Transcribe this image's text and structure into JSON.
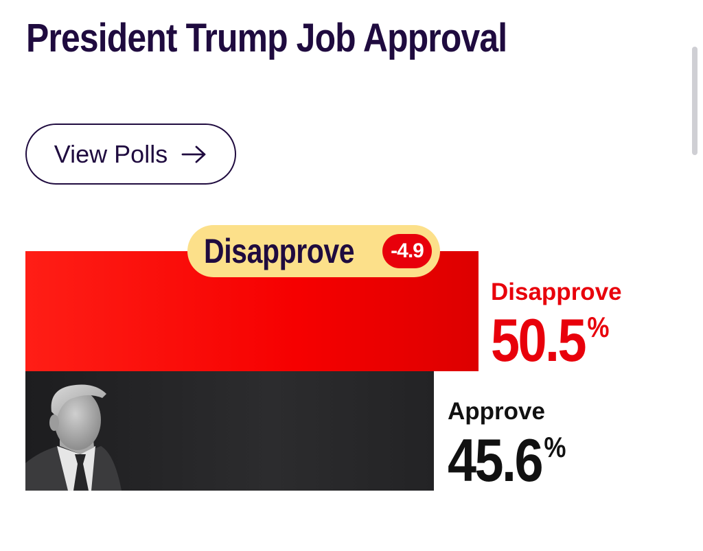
{
  "page": {
    "title": "President Trump Job Approval"
  },
  "actions": {
    "view_polls_label": "View Polls",
    "view_polls_icon": "arrow-right-icon"
  },
  "chart_data": {
    "type": "bar",
    "categories": [
      "Disapprove",
      "Approve"
    ],
    "values": [
      50.5,
      45.6
    ],
    "unit": "%",
    "colors": [
      "#f60000",
      "#222224"
    ],
    "leader": {
      "label": "Disapprove",
      "spread": "-4.9"
    }
  },
  "results": {
    "disapprove": {
      "label": "Disapprove",
      "value": "50.5",
      "unit": "%",
      "color": "#e8000b"
    },
    "approve": {
      "label": "Approve",
      "value": "45.6",
      "unit": "%",
      "color": "#111111"
    }
  },
  "colors": {
    "title": "#1f0b3f",
    "pill_background": "#fce08a",
    "badge": "#e8000b"
  }
}
